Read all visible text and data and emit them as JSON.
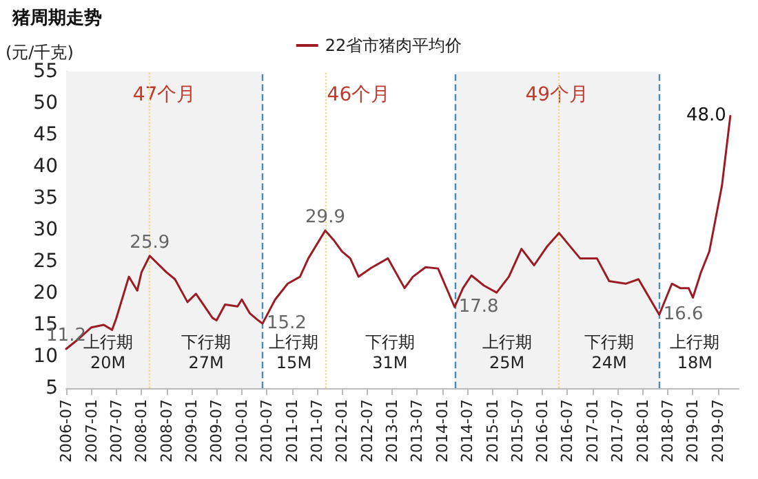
{
  "chart_data": {
    "type": "line",
    "title": "猪周期走势",
    "ylabel": "(元/千克)",
    "series": [
      {
        "name": "22省市猪肉平均价",
        "color": "#9b1c24",
        "x": [
          "2006-07",
          "2006-10",
          "2007-01",
          "2007-04",
          "2007-06",
          "2007-07",
          "2007-10",
          "2007-12",
          "2008-01",
          "2008-03",
          "2008-07",
          "2008-09",
          "2008-12",
          "2009-02",
          "2009-06",
          "2009-07",
          "2009-09",
          "2009-12",
          "2010-01",
          "2010-03",
          "2010-05",
          "2010-06",
          "2010-09",
          "2010-12",
          "2011-03",
          "2011-05",
          "2011-09",
          "2011-11",
          "2012-01",
          "2012-03",
          "2012-05",
          "2012-08",
          "2012-12",
          "2013-04",
          "2013-06",
          "2013-09",
          "2013-12",
          "2014-04",
          "2014-06",
          "2014-08",
          "2014-11",
          "2015-02",
          "2015-05",
          "2015-08",
          "2015-11",
          "2016-02",
          "2016-05",
          "2016-10",
          "2017-02",
          "2017-05",
          "2017-09",
          "2017-12",
          "2018-05",
          "2018-08",
          "2018-10",
          "2018-12",
          "2019-01",
          "2019-03",
          "2019-05",
          "2019-08",
          "2019-10"
        ],
        "values": [
          11.2,
          12.8,
          14.6,
          15.0,
          14.2,
          16.0,
          22.6,
          20.4,
          23.3,
          25.9,
          23.3,
          22.2,
          18.6,
          19.9,
          16.1,
          15.7,
          18.2,
          17.9,
          19.0,
          16.8,
          15.7,
          15.2,
          19.0,
          21.5,
          22.6,
          25.5,
          29.9,
          28.4,
          26.6,
          25.5,
          22.6,
          24.0,
          25.5,
          20.8,
          22.6,
          24.1,
          23.9,
          17.8,
          20.8,
          22.8,
          21.2,
          20.1,
          22.6,
          27.0,
          24.4,
          27.3,
          29.5,
          25.5,
          25.5,
          21.9,
          21.5,
          22.2,
          16.6,
          21.5,
          20.8,
          20.8,
          19.3,
          23.3,
          26.6,
          37.0,
          48.0
        ],
        "value_labels": [
          "11.2",
          null,
          null,
          null,
          null,
          null,
          null,
          null,
          null,
          "25.9",
          null,
          null,
          null,
          null,
          null,
          null,
          null,
          null,
          null,
          null,
          null,
          "15.2",
          null,
          null,
          null,
          null,
          "29.9",
          null,
          null,
          null,
          null,
          null,
          null,
          null,
          null,
          null,
          null,
          "17.8",
          null,
          null,
          null,
          null,
          null,
          null,
          null,
          null,
          null,
          null,
          null,
          null,
          null,
          null,
          "16.6",
          null,
          null,
          null,
          null,
          null,
          null,
          null,
          "48.0"
        ]
      }
    ],
    "xlim": [
      "2006-07",
      "2019-12"
    ],
    "xticks": [
      "2006-07",
      "2007-01",
      "2007-07",
      "2008-01",
      "2008-07",
      "2009-01",
      "2009-07",
      "2010-01",
      "2010-07",
      "2011-01",
      "2011-07",
      "2012-01",
      "2012-07",
      "2013-01",
      "2013-07",
      "2014-01",
      "2014-07",
      "2015-01",
      "2015-07",
      "2016-01",
      "2016-07",
      "2017-01",
      "2017-07",
      "2018-01",
      "2018-07",
      "2019-01",
      "2019-07"
    ],
    "ylim": [
      5,
      55
    ],
    "yticks": [
      5,
      10,
      15,
      20,
      25,
      30,
      35,
      40,
      45,
      50,
      55
    ],
    "grid": false,
    "legend": "top",
    "marker": "none",
    "line_style": "solid",
    "bands": [
      {
        "axis": "x",
        "from": "2006-07",
        "to": "2010-06",
        "label": "47个月",
        "color": "#f2f2f2"
      },
      {
        "axis": "x",
        "from": "2014-04",
        "to": "2018-05",
        "label": "49个月",
        "color": "#f2f2f2"
      }
    ],
    "ref_lines": [
      {
        "axis": "x",
        "value": "2010-06",
        "label": null,
        "color": "#4a8ab8",
        "line_style": "dashed"
      },
      {
        "axis": "x",
        "value": "2014-04",
        "label": null,
        "color": "#4a8ab8",
        "line_style": "dashed"
      },
      {
        "axis": "x",
        "value": "2018-05",
        "label": null,
        "color": "#4a8ab8",
        "line_style": "dashed"
      },
      {
        "axis": "x",
        "value": "2008-03",
        "label": null,
        "color": "#f0d58a",
        "line_style": "dotted"
      },
      {
        "axis": "x",
        "value": "2011-09",
        "label": null,
        "color": "#f0d58a",
        "line_style": "dotted"
      },
      {
        "axis": "x",
        "value": "2016-05",
        "label": null,
        "color": "#f0d58a",
        "line_style": "dotted"
      }
    ],
    "annotations": [
      "上行期",
      "20M",
      "下行期",
      "27M",
      "上行期",
      "15M",
      "下行期",
      "31M",
      "上行期",
      "25M",
      "下行期",
      "24M",
      "上行期",
      "18M",
      "46个月"
    ]
  }
}
